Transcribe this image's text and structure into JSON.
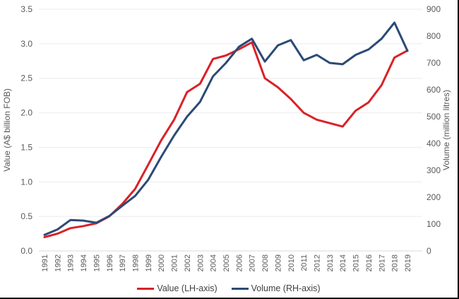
{
  "chart_data": {
    "type": "line",
    "title": "",
    "x": [
      1991,
      1992,
      1993,
      1994,
      1995,
      1996,
      1997,
      1998,
      1999,
      2000,
      2001,
      2002,
      2003,
      2004,
      2005,
      2006,
      2007,
      2008,
      2009,
      2010,
      2011,
      2012,
      2013,
      2014,
      2015,
      2016,
      2017,
      2018,
      2019
    ],
    "series": [
      {
        "name": "Value (LH-axis)",
        "axis": "left",
        "color": "#da2128",
        "values": [
          0.2,
          0.25,
          0.33,
          0.36,
          0.4,
          0.5,
          0.68,
          0.9,
          1.25,
          1.6,
          1.9,
          2.3,
          2.42,
          2.78,
          2.83,
          2.92,
          3.02,
          2.5,
          2.37,
          2.2,
          2.0,
          1.9,
          1.85,
          1.8,
          2.03,
          2.15,
          2.4,
          2.8,
          2.9
        ]
      },
      {
        "name": "Volume (RH-axis)",
        "axis": "right",
        "color": "#2b4a76",
        "values": [
          60,
          80,
          115,
          113,
          105,
          130,
          168,
          205,
          265,
          350,
          430,
          500,
          555,
          650,
          700,
          760,
          790,
          705,
          765,
          785,
          710,
          730,
          700,
          695,
          730,
          750,
          790,
          850,
          745
        ]
      }
    ],
    "left_axis": {
      "label": "Value (A$ billion FOB)",
      "min": 0,
      "max": 3.5,
      "tick_labels": [
        "0.0",
        "0.5",
        "1.0",
        "1.5",
        "2.0",
        "2.5",
        "3.0",
        "3.5"
      ]
    },
    "right_axis": {
      "label": "Volume (million litres)",
      "min": 0,
      "max": 900,
      "tick_labels": [
        "0",
        "100",
        "200",
        "300",
        "400",
        "500",
        "600",
        "700",
        "800",
        "900"
      ]
    },
    "grid": true,
    "legend_position": "bottom"
  },
  "colors": {
    "gridline": "#ebebeb",
    "baseline": "#d9d9d9",
    "axis_text": "#595959",
    "legend_text": "#3f3f3f"
  }
}
